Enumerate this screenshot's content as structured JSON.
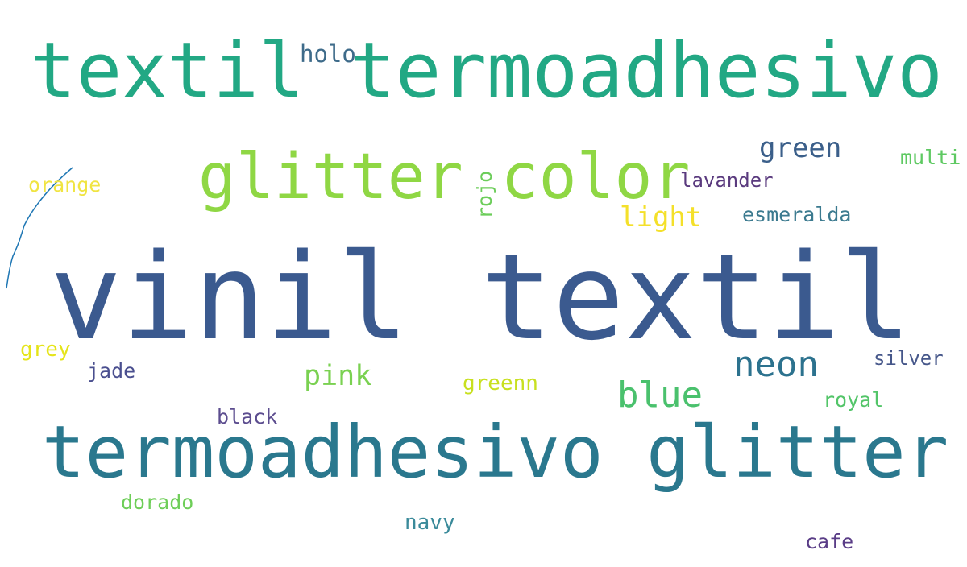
{
  "words": [
    "textil termoadhesivo",
    "holo",
    "glitter color",
    "green",
    "multi",
    "lavander",
    "rojo",
    "orange",
    "light",
    "esmeralda",
    "vinil textil",
    "grey",
    "jade",
    "pink",
    "greenn",
    "blue",
    "neon",
    "silver",
    "royal",
    "black",
    "termoadhesivo glitter",
    "dorado",
    "navy",
    "cafe"
  ]
}
